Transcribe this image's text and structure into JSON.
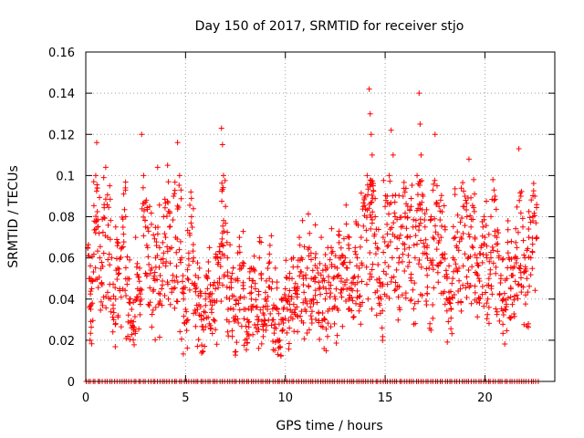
{
  "chart_data": {
    "type": "scatter",
    "title": "Day 150 of 2017, SRMTID for receiver stjo",
    "xlabel": "GPS time / hours",
    "ylabel": "SRMTID / TECUs",
    "xlim": [
      0,
      23.5
    ],
    "ylim": [
      0,
      0.16
    ],
    "x_ticks": [
      0,
      5,
      10,
      15,
      20
    ],
    "x_tick_labels": [
      "0",
      "5",
      "10",
      "15",
      "20"
    ],
    "y_ticks": [
      0,
      0.02,
      0.04,
      0.06,
      0.08,
      0.1,
      0.12,
      0.14,
      0.16
    ],
    "y_tick_labels": [
      "0",
      "0.02",
      "0.04",
      "0.06",
      "0.08",
      "0.1",
      "0.12",
      "0.14",
      "0.16"
    ],
    "grid": true,
    "legend": "none",
    "series": [
      {
        "name": "SRMTID",
        "marker": "+",
        "color": "#ff0000",
        "sampled_points": [
          [
            0.1,
            0.065
          ],
          [
            0.2,
            0.05
          ],
          [
            0.25,
            0.035
          ],
          [
            0.3,
            0.045
          ],
          [
            0.4,
            0.097
          ],
          [
            0.5,
            0.1
          ],
          [
            0.55,
            0.116
          ],
          [
            0.6,
            0.075
          ],
          [
            0.7,
            0.06
          ],
          [
            0.8,
            0.048
          ],
          [
            0.9,
            0.099
          ],
          [
            1.0,
            0.104
          ],
          [
            1.1,
            0.07
          ],
          [
            1.2,
            0.095
          ],
          [
            1.3,
            0.06
          ],
          [
            1.4,
            0.03
          ],
          [
            1.5,
            0.075
          ],
          [
            1.6,
            0.055
          ],
          [
            1.7,
            0.045
          ],
          [
            1.8,
            0.065
          ],
          [
            1.9,
            0.091
          ],
          [
            2.0,
            0.08
          ],
          [
            2.1,
            0.05
          ],
          [
            2.2,
            0.04
          ],
          [
            2.3,
            0.035
          ],
          [
            2.4,
            0.025
          ],
          [
            2.5,
            0.07
          ],
          [
            2.6,
            0.045
          ],
          [
            2.7,
            0.055
          ],
          [
            2.8,
            0.12
          ],
          [
            2.9,
            0.1
          ],
          [
            3.0,
            0.075
          ],
          [
            3.1,
            0.065
          ],
          [
            3.2,
            0.085
          ],
          [
            3.3,
            0.055
          ],
          [
            3.4,
            0.05
          ],
          [
            3.5,
            0.06
          ],
          [
            3.6,
            0.104
          ],
          [
            3.7,
            0.065
          ],
          [
            3.8,
            0.045
          ],
          [
            3.9,
            0.08
          ],
          [
            4.0,
            0.07
          ],
          [
            4.1,
            0.105
          ],
          [
            4.2,
            0.075
          ],
          [
            4.3,
            0.065
          ],
          [
            4.4,
            0.09
          ],
          [
            4.5,
            0.07
          ],
          [
            4.6,
            0.116
          ],
          [
            4.7,
            0.1
          ],
          [
            4.8,
            0.06
          ],
          [
            4.9,
            0.04
          ],
          [
            5.0,
            0.035
          ],
          [
            5.1,
            0.05
          ],
          [
            5.2,
            0.072
          ],
          [
            5.3,
            0.08
          ],
          [
            5.4,
            0.06
          ],
          [
            5.5,
            0.045
          ],
          [
            5.6,
            0.035
          ],
          [
            5.7,
            0.055
          ],
          [
            5.8,
            0.03
          ],
          [
            5.9,
            0.025
          ],
          [
            6.0,
            0.04
          ],
          [
            6.1,
            0.05
          ],
          [
            6.2,
            0.065
          ],
          [
            6.3,
            0.035
          ],
          [
            6.4,
            0.03
          ],
          [
            6.5,
            0.045
          ],
          [
            6.6,
            0.06
          ],
          [
            6.7,
            0.05
          ],
          [
            6.8,
            0.123
          ],
          [
            6.85,
            0.115
          ],
          [
            6.9,
            0.1
          ],
          [
            7.0,
            0.085
          ],
          [
            7.1,
            0.06
          ],
          [
            7.2,
            0.04
          ],
          [
            7.3,
            0.05
          ],
          [
            7.4,
            0.035
          ],
          [
            7.5,
            0.03
          ],
          [
            7.6,
            0.05
          ],
          [
            7.7,
            0.07
          ],
          [
            7.8,
            0.055
          ],
          [
            7.9,
            0.045
          ],
          [
            8.0,
            0.035
          ],
          [
            8.1,
            0.03
          ],
          [
            8.2,
            0.05
          ],
          [
            8.3,
            0.04
          ],
          [
            8.4,
            0.055
          ],
          [
            8.5,
            0.045
          ],
          [
            8.6,
            0.03
          ],
          [
            8.7,
            0.06
          ],
          [
            8.8,
            0.05
          ],
          [
            8.9,
            0.025
          ],
          [
            9.0,
            0.04
          ],
          [
            9.1,
            0.035
          ],
          [
            9.2,
            0.05
          ],
          [
            9.3,
            0.045
          ],
          [
            9.4,
            0.03
          ],
          [
            9.5,
            0.055
          ],
          [
            9.6,
            0.035
          ],
          [
            9.7,
            0.02
          ],
          [
            9.8,
            0.04
          ],
          [
            9.9,
            0.03
          ],
          [
            10.0,
            0.045
          ],
          [
            10.1,
            0.035
          ],
          [
            10.2,
            0.05
          ],
          [
            10.3,
            0.04
          ],
          [
            10.4,
            0.06
          ],
          [
            10.5,
            0.035
          ],
          [
            10.6,
            0.045
          ],
          [
            10.7,
            0.07
          ],
          [
            10.8,
            0.06
          ],
          [
            10.9,
            0.05
          ],
          [
            11.0,
            0.04
          ],
          [
            11.1,
            0.055
          ],
          [
            11.2,
            0.065
          ],
          [
            11.3,
            0.05
          ],
          [
            11.4,
            0.04
          ],
          [
            11.5,
            0.06
          ],
          [
            11.6,
            0.055
          ],
          [
            11.7,
            0.045
          ],
          [
            11.8,
            0.07
          ],
          [
            11.9,
            0.05
          ],
          [
            12.0,
            0.04
          ],
          [
            12.1,
            0.055
          ],
          [
            12.2,
            0.045
          ],
          [
            12.3,
            0.065
          ],
          [
            12.4,
            0.05
          ],
          [
            12.5,
            0.04
          ],
          [
            12.6,
            0.055
          ],
          [
            12.7,
            0.06
          ],
          [
            12.8,
            0.05
          ],
          [
            12.9,
            0.045
          ],
          [
            13.0,
            0.06
          ],
          [
            13.1,
            0.055
          ],
          [
            13.2,
            0.07
          ],
          [
            13.3,
            0.045
          ],
          [
            13.4,
            0.05
          ],
          [
            13.5,
            0.065
          ],
          [
            13.6,
            0.06
          ],
          [
            13.7,
            0.055
          ],
          [
            13.8,
            0.07
          ],
          [
            13.9,
            0.085
          ],
          [
            14.0,
            0.09
          ],
          [
            14.1,
            0.1
          ],
          [
            14.2,
            0.142
          ],
          [
            14.25,
            0.13
          ],
          [
            14.3,
            0.12
          ],
          [
            14.35,
            0.11
          ],
          [
            14.4,
            0.095
          ],
          [
            14.5,
            0.08
          ],
          [
            14.6,
            0.065
          ],
          [
            14.7,
            0.05
          ],
          [
            14.8,
            0.04
          ],
          [
            14.9,
            0.07
          ],
          [
            15.0,
            0.085
          ],
          [
            15.1,
            0.09
          ],
          [
            15.2,
            0.1
          ],
          [
            15.3,
            0.122
          ],
          [
            15.4,
            0.11
          ],
          [
            15.5,
            0.08
          ],
          [
            15.6,
            0.07
          ],
          [
            15.7,
            0.06
          ],
          [
            15.8,
            0.075
          ],
          [
            15.9,
            0.09
          ],
          [
            16.0,
            0.08
          ],
          [
            16.1,
            0.07
          ],
          [
            16.2,
            0.065
          ],
          [
            16.3,
            0.085
          ],
          [
            16.4,
            0.075
          ],
          [
            16.5,
            0.06
          ],
          [
            16.6,
            0.1
          ],
          [
            16.7,
            0.14
          ],
          [
            16.75,
            0.125
          ],
          [
            16.8,
            0.11
          ],
          [
            16.9,
            0.09
          ],
          [
            17.0,
            0.075
          ],
          [
            17.1,
            0.065
          ],
          [
            17.2,
            0.055
          ],
          [
            17.3,
            0.08
          ],
          [
            17.4,
            0.07
          ],
          [
            17.5,
            0.12
          ],
          [
            17.6,
            0.095
          ],
          [
            17.7,
            0.085
          ],
          [
            17.8,
            0.07
          ],
          [
            17.9,
            0.06
          ],
          [
            18.0,
            0.075
          ],
          [
            18.1,
            0.05
          ],
          [
            18.2,
            0.04
          ],
          [
            18.3,
            0.035
          ],
          [
            18.4,
            0.06
          ],
          [
            18.5,
            0.07
          ],
          [
            18.6,
            0.065
          ],
          [
            18.7,
            0.055
          ],
          [
            18.8,
            0.07
          ],
          [
            18.9,
            0.085
          ],
          [
            19.0,
            0.09
          ],
          [
            19.1,
            0.08
          ],
          [
            19.2,
            0.108
          ],
          [
            19.3,
            0.075
          ],
          [
            19.4,
            0.065
          ],
          [
            19.5,
            0.07
          ],
          [
            19.6,
            0.06
          ],
          [
            19.7,
            0.05
          ],
          [
            19.8,
            0.065
          ],
          [
            19.9,
            0.075
          ],
          [
            20.0,
            0.07
          ],
          [
            20.1,
            0.06
          ],
          [
            20.2,
            0.05
          ],
          [
            20.3,
            0.06
          ],
          [
            20.4,
            0.098
          ],
          [
            20.5,
            0.09
          ],
          [
            20.6,
            0.07
          ],
          [
            20.7,
            0.06
          ],
          [
            20.8,
            0.05
          ],
          [
            20.9,
            0.04
          ],
          [
            21.0,
            0.035
          ],
          [
            21.1,
            0.05
          ],
          [
            21.2,
            0.06
          ],
          [
            21.3,
            0.045
          ],
          [
            21.4,
            0.055
          ],
          [
            21.5,
            0.06
          ],
          [
            21.6,
            0.065
          ],
          [
            21.7,
            0.113
          ],
          [
            21.8,
            0.09
          ],
          [
            21.9,
            0.075
          ],
          [
            22.0,
            0.06
          ],
          [
            22.1,
            0.05
          ],
          [
            22.2,
            0.07
          ],
          [
            22.3,
            0.06
          ],
          [
            22.4,
            0.08
          ],
          [
            22.5,
            0.09
          ],
          [
            22.6,
            0.07
          ]
        ]
      },
      {
        "name": "zero-level samples",
        "marker": "+",
        "color": "#ff0000",
        "y": 0,
        "x_range": [
          0,
          22.7
        ]
      }
    ]
  }
}
